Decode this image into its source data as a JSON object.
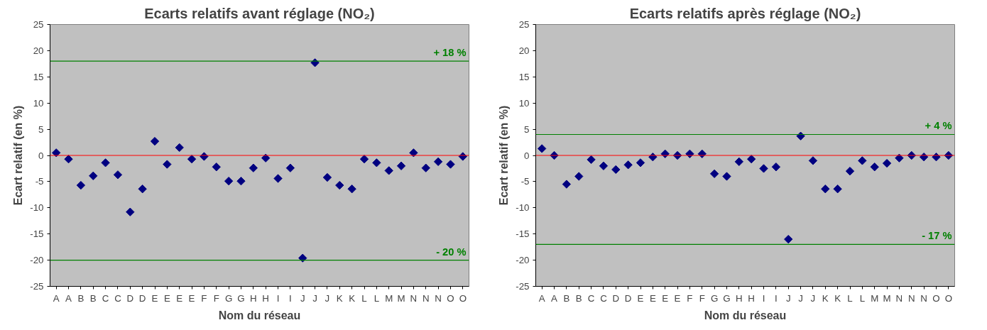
{
  "chart_data": [
    {
      "type": "scatter",
      "title": "Ecarts relatifs avant réglage (NO₂)",
      "xlabel": "Nom du réseau",
      "ylabel": "Ecart relatif (en %)",
      "categories": [
        "A",
        "A",
        "B",
        "B",
        "C",
        "C",
        "D",
        "D",
        "E",
        "E",
        "E",
        "E",
        "F",
        "F",
        "G",
        "G",
        "H",
        "H",
        "I",
        "I",
        "J",
        "J",
        "J",
        "K",
        "K",
        "L",
        "L",
        "M",
        "M",
        "N",
        "N",
        "N",
        "O",
        "O"
      ],
      "series": [
        {
          "color": "#000080",
          "values": [
            0.5,
            -0.7,
            -5.7,
            -3.9,
            -1.4,
            -3.7,
            -10.8,
            -6.4,
            2.7,
            -1.7,
            1.5,
            -0.7,
            -0.2,
            -2.2,
            -4.9,
            -4.9,
            -2.4,
            -0.5,
            -4.4,
            -2.4,
            -19.6,
            17.7,
            -4.2,
            -5.7,
            -6.4,
            -0.7,
            -1.4,
            -2.9,
            -2.0,
            0.5,
            -2.4,
            -1.2,
            -1.7,
            -0.2
          ]
        }
      ],
      "ylim": [
        -25,
        25
      ],
      "yticks": [
        -25,
        -20,
        -15,
        -10,
        -5,
        0,
        5,
        10,
        15,
        20,
        25
      ],
      "ref_lines": [
        {
          "axis": "y",
          "value": 18,
          "label": "+ 18 %",
          "color": "#008000"
        },
        {
          "axis": "y",
          "value": -20,
          "label": "- 20 %",
          "color": "#008000"
        },
        {
          "axis": "y",
          "value": 0,
          "label": null,
          "color": "#ff0000"
        }
      ],
      "marker": "diamond",
      "grid": false
    },
    {
      "type": "scatter",
      "title": "Ecarts relatifs après réglage (NO₂)",
      "xlabel": "Nom du réseau",
      "ylabel": "Ecart relatif (en %)",
      "categories": [
        "A",
        "A",
        "B",
        "B",
        "C",
        "C",
        "D",
        "D",
        "E",
        "E",
        "E",
        "E",
        "F",
        "F",
        "G",
        "G",
        "H",
        "H",
        "I",
        "I",
        "J",
        "J",
        "J",
        "K",
        "K",
        "L",
        "L",
        "M",
        "M",
        "N",
        "N",
        "N",
        "O",
        "O"
      ],
      "series": [
        {
          "color": "#000080",
          "values": [
            1.3,
            0,
            -5.5,
            -4.0,
            -0.8,
            -2.0,
            -2.7,
            -1.8,
            -1.4,
            -0.3,
            0.3,
            0,
            0.3,
            0.3,
            -3.5,
            -4.0,
            -1.2,
            -0.7,
            -2.5,
            -2.2,
            -16.0,
            3.7,
            -1.0,
            -6.4,
            -6.4,
            -3.0,
            -1.0,
            -2.2,
            -1.5,
            -0.5,
            0,
            -0.3,
            -0.3,
            0
          ]
        }
      ],
      "ylim": [
        -25,
        25
      ],
      "yticks": [
        -25,
        -20,
        -15,
        -10,
        -5,
        0,
        5,
        10,
        15,
        20,
        25
      ],
      "ref_lines": [
        {
          "axis": "y",
          "value": 4,
          "label": "+ 4 %",
          "color": "#008000"
        },
        {
          "axis": "y",
          "value": -17,
          "label": "- 17 %",
          "color": "#008000"
        },
        {
          "axis": "y",
          "value": 0,
          "label": null,
          "color": "#ff0000"
        }
      ],
      "marker": "diamond",
      "grid": false
    }
  ]
}
